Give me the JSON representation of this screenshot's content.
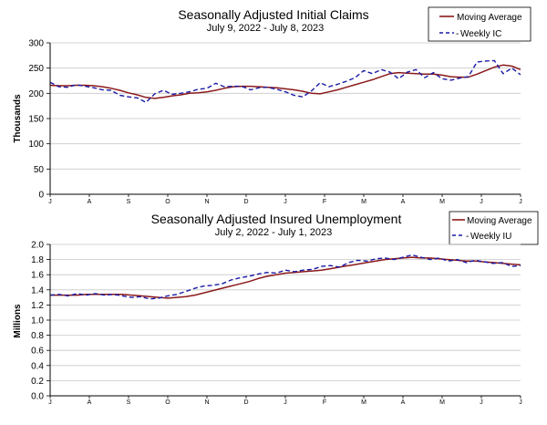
{
  "chart_data": [
    {
      "type": "line",
      "title": "Seasonally Adjusted Initial Claims",
      "subtitle": "July 9, 2022 - July 8, 2023",
      "xlabel": "",
      "ylabel": "Thousands",
      "ylim": [
        0,
        300
      ],
      "yticks": [
        "0",
        "50",
        "100",
        "150",
        "200",
        "250",
        "300"
      ],
      "month_labels": [
        "J",
        "A",
        "S",
        "O",
        "N",
        "D",
        "J",
        "F",
        "M",
        "A",
        "M",
        "J",
        "J"
      ],
      "grid": true,
      "legend": "top-right",
      "series": [
        {
          "name": "Moving Average",
          "color": "#8b1a1a",
          "style": "solid",
          "values": [
            216,
            215,
            215,
            216,
            216,
            215,
            213,
            210,
            206,
            201,
            197,
            192,
            190,
            192,
            195,
            197,
            200,
            201,
            203,
            206,
            210,
            213,
            214,
            214,
            213,
            212,
            211,
            209,
            207,
            204,
            200,
            199,
            203,
            207,
            212,
            217,
            222,
            227,
            233,
            239,
            241,
            240,
            239,
            238,
            238,
            236,
            233,
            232,
            232,
            238,
            245,
            252,
            256,
            254,
            247
          ]
        },
        {
          "name": "Weekly IC",
          "color": "#1a1aa6",
          "style": "dashed",
          "values": [
            222,
            213,
            212,
            217,
            214,
            211,
            207,
            206,
            196,
            193,
            191,
            182,
            199,
            206,
            198,
            200,
            203,
            208,
            210,
            220,
            213,
            214,
            214,
            207,
            211,
            212,
            208,
            203,
            196,
            193,
            205,
            221,
            213,
            218,
            224,
            231,
            245,
            239,
            247,
            242,
            229,
            242,
            247,
            231,
            241,
            229,
            226,
            230,
            233,
            262,
            264,
            265,
            239,
            250,
            237
          ]
        }
      ]
    },
    {
      "type": "line",
      "title": "Seasonally Adjusted Insured Unemployment",
      "subtitle": "July 2, 2022 - July 1, 2023",
      "xlabel": "",
      "ylabel": "Millions",
      "ylim": [
        0,
        2.0
      ],
      "yticks": [
        "0.0",
        "0.2",
        "0.4",
        "0.6",
        "0.8",
        "1.0",
        "1.2",
        "1.4",
        "1.6",
        "1.8",
        "2.0"
      ],
      "month_labels": [
        "J",
        "A",
        "S",
        "O",
        "N",
        "D",
        "J",
        "F",
        "M",
        "A",
        "M",
        "J",
        "J"
      ],
      "grid": true,
      "legend": "top-right",
      "series": [
        {
          "name": "Moving Average",
          "color": "#8b1a1a",
          "style": "solid",
          "values": [
            1.33,
            1.33,
            1.33,
            1.33,
            1.34,
            1.34,
            1.34,
            1.34,
            1.34,
            1.33,
            1.32,
            1.31,
            1.3,
            1.29,
            1.3,
            1.31,
            1.33,
            1.36,
            1.39,
            1.42,
            1.45,
            1.48,
            1.51,
            1.55,
            1.58,
            1.6,
            1.62,
            1.63,
            1.64,
            1.65,
            1.66,
            1.68,
            1.7,
            1.72,
            1.74,
            1.76,
            1.78,
            1.8,
            1.81,
            1.82,
            1.83,
            1.82,
            1.82,
            1.81,
            1.8,
            1.79,
            1.78,
            1.78,
            1.77,
            1.76,
            1.75,
            1.74,
            1.73
          ]
        },
        {
          "name": "Weekly IU",
          "color": "#1a1aa6",
          "style": "dashed",
          "values": [
            1.33,
            1.34,
            1.32,
            1.35,
            1.33,
            1.35,
            1.33,
            1.34,
            1.32,
            1.3,
            1.31,
            1.28,
            1.29,
            1.32,
            1.34,
            1.38,
            1.42,
            1.45,
            1.46,
            1.48,
            1.53,
            1.56,
            1.58,
            1.61,
            1.63,
            1.62,
            1.66,
            1.64,
            1.66,
            1.67,
            1.71,
            1.72,
            1.7,
            1.76,
            1.79,
            1.78,
            1.81,
            1.82,
            1.8,
            1.83,
            1.86,
            1.83,
            1.8,
            1.82,
            1.78,
            1.8,
            1.76,
            1.79,
            1.77,
            1.75,
            1.76,
            1.71,
            1.72
          ]
        }
      ]
    }
  ]
}
